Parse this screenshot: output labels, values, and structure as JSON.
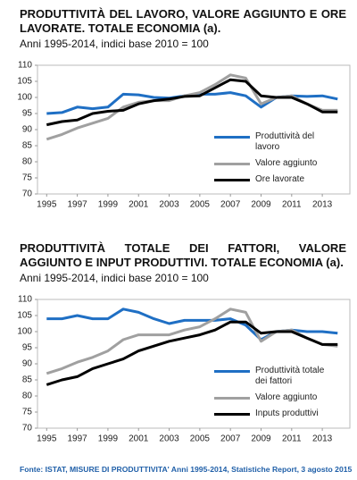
{
  "chart_data": [
    {
      "type": "line",
      "title": "PRODUTTIVITÀ DEL LAVORO, VALORE AGGIUNTO E ORE LAVORATE. TOTALE ECONOMIA (a).",
      "subtitle": "Anni 1995-2014, indici base 2010 = 100",
      "x": [
        1995,
        1996,
        1997,
        1998,
        1999,
        2000,
        2001,
        2002,
        2003,
        2004,
        2005,
        2006,
        2007,
        2008,
        2009,
        2010,
        2011,
        2012,
        2013,
        2014
      ],
      "xlim": [
        1994.4,
        2014.8
      ],
      "xticks": [
        1995,
        1997,
        1999,
        2001,
        2003,
        2005,
        2007,
        2009,
        2011,
        2013
      ],
      "ylim": [
        70,
        110
      ],
      "yticks": [
        70,
        75,
        80,
        85,
        90,
        95,
        100,
        105,
        110
      ],
      "legend": "lower right",
      "series": [
        {
          "name": "Produttività del lavoro",
          "color": "#1f6fc4",
          "values": [
            95,
            95.3,
            97,
            96.5,
            97,
            101,
            100.8,
            100,
            99.8,
            100.5,
            101,
            101,
            101.5,
            100.5,
            97,
            100,
            100.5,
            100.3,
            100.5,
            99.5
          ]
        },
        {
          "name": "Valore aggiunto",
          "color": "#a0a0a0",
          "values": [
            87,
            88.5,
            90.5,
            92,
            93.5,
            97,
            98.5,
            99,
            99,
            100.5,
            101.5,
            104,
            107,
            106,
            98,
            100,
            100.5,
            98,
            96,
            96
          ]
        },
        {
          "name": "Ore lavorate",
          "color": "#000000",
          "values": [
            91.5,
            92.5,
            93,
            95,
            95.7,
            96,
            98,
            99,
            99.5,
            100.3,
            100.5,
            103,
            105.5,
            105,
            100.5,
            100,
            100,
            98,
            95.5,
            95.5
          ]
        }
      ]
    },
    {
      "type": "line",
      "title": "PRODUTTIVITÀ TOTALE DEI FATTORI, VALORE AGGIUNTO E INPUT PRODUTTIVI. TOTALE ECONOMIA (a).",
      "subtitle": "Anni 1995-2014, indici base 2010 = 100",
      "x": [
        1995,
        1996,
        1997,
        1998,
        1999,
        2000,
        2001,
        2002,
        2003,
        2004,
        2005,
        2006,
        2007,
        2008,
        2009,
        2010,
        2011,
        2012,
        2013,
        2014
      ],
      "xlim": [
        1994.4,
        2014.8
      ],
      "xticks": [
        1995,
        1997,
        1999,
        2001,
        2003,
        2005,
        2007,
        2009,
        2011,
        2013
      ],
      "ylim": [
        70,
        110
      ],
      "yticks": [
        70,
        75,
        80,
        85,
        90,
        95,
        100,
        105,
        110
      ],
      "legend": "lower right",
      "series": [
        {
          "name": "Produttività totale dei fattori",
          "color": "#1f6fc4",
          "values": [
            104,
            104,
            105,
            104,
            104,
            107,
            106,
            104,
            102.5,
            103.5,
            103.5,
            103.5,
            104,
            102,
            97.5,
            100,
            100.5,
            100,
            100,
            99.5
          ]
        },
        {
          "name": "Valore aggiunto",
          "color": "#a0a0a0",
          "values": [
            87,
            88.5,
            90.5,
            92,
            94,
            97.5,
            99,
            99,
            99,
            100.5,
            101.5,
            104,
            107,
            106,
            97,
            100,
            100.5,
            98,
            96,
            95.5
          ]
        },
        {
          "name": "Inputs produttivi",
          "color": "#000000",
          "values": [
            83.5,
            85,
            86,
            88.5,
            90,
            91.5,
            94,
            95.5,
            97,
            98,
            99,
            100.5,
            103,
            103,
            99.5,
            100,
            100,
            98,
            96,
            96
          ]
        }
      ]
    }
  ],
  "source": "Fonte: ISTAT, MISURE DI PRODUTTIVITA' Anni 1995-2014, Statistiche Report, 3 agosto 2015"
}
